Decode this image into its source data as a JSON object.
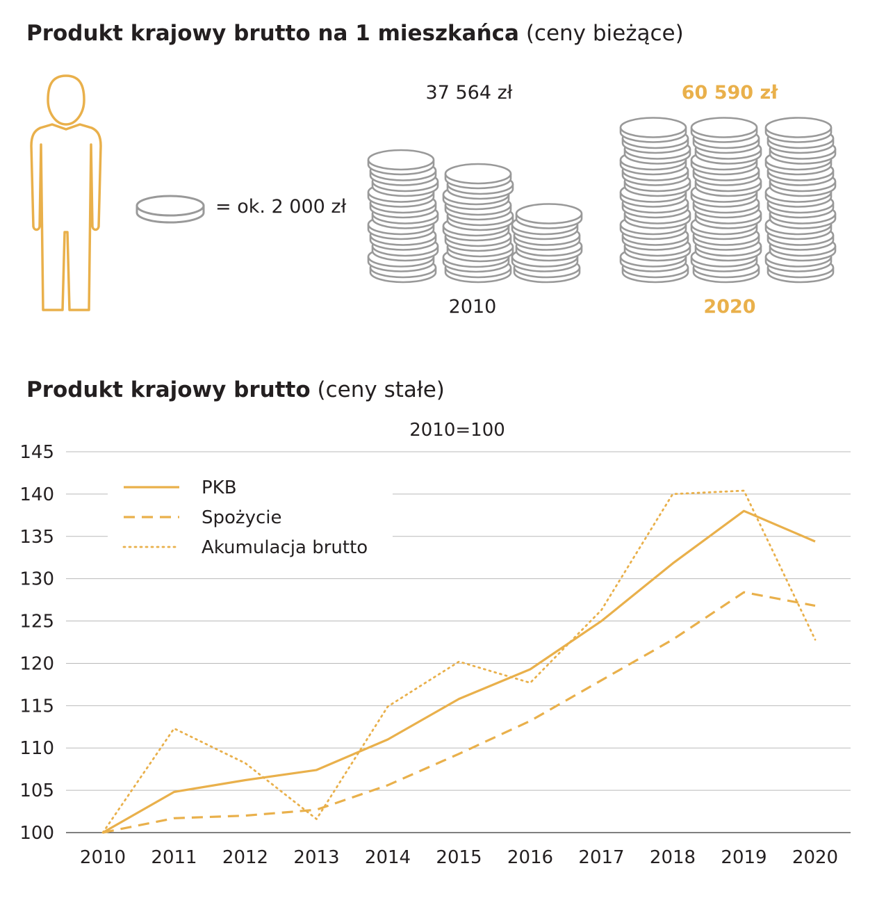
{
  "infographic": {
    "title_bold": "Produkt krajowy brutto na 1 mieszkańca",
    "title_light": "(ceny bieżące)",
    "coin_legend": "= ok. 2 000 zł",
    "y2010": {
      "amount": "37 564 zł",
      "year": "2010"
    },
    "y2020": {
      "amount": "60 590 zł",
      "year": "2020"
    },
    "colors": {
      "accent": "#e9b04b",
      "coin": "#999999",
      "text": "#231f20",
      "grid": "#b9b9b9"
    }
  },
  "chart_data": {
    "type": "line",
    "title": "Produkt krajowy brutto",
    "title_note": "(ceny stałe)",
    "subtitle": "2010=100",
    "x": [
      "2010",
      "2011",
      "2012",
      "2013",
      "2014",
      "2015",
      "2016",
      "2017",
      "2018",
      "2019",
      "2020"
    ],
    "ylim": [
      100,
      145
    ],
    "yticks": [
      100,
      105,
      110,
      115,
      120,
      125,
      130,
      135,
      140,
      145
    ],
    "grid": true,
    "legend_position": "top-left",
    "series": [
      {
        "name": "PKB",
        "style": "solid",
        "values": [
          100,
          104.8,
          106.2,
          107.4,
          111.0,
          115.8,
          119.3,
          125.0,
          131.8,
          138.0,
          134.4
        ]
      },
      {
        "name": "Spożycie",
        "style": "dashed",
        "values": [
          100,
          101.7,
          102.0,
          102.7,
          105.6,
          109.3,
          113.2,
          118.0,
          122.8,
          128.4,
          126.8
        ]
      },
      {
        "name": "Akumulacja brutto",
        "style": "dotted",
        "values": [
          100,
          112.3,
          108.2,
          101.6,
          114.9,
          120.2,
          117.7,
          126.3,
          140.0,
          140.4,
          122.8
        ]
      }
    ]
  }
}
